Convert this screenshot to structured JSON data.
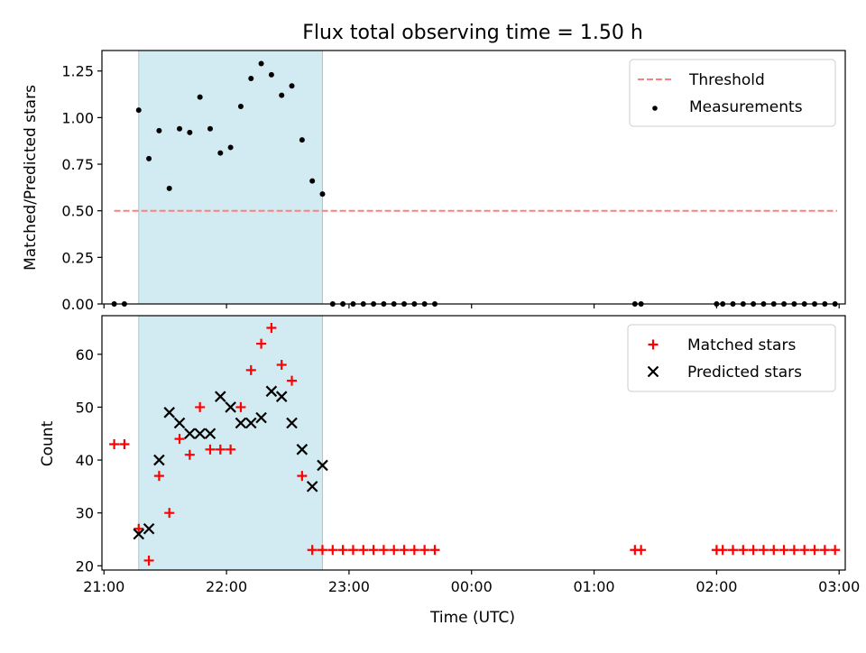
{
  "figure": {
    "title": "Flux total observing time = 1.50 h",
    "xlabel": "Time (UTC)",
    "x_tick_labels": [
      "21:00",
      "22:00",
      "23:00",
      "00:00",
      "01:00",
      "02:00",
      "03:00"
    ]
  },
  "chart_data": [
    {
      "type": "scatter",
      "ylabel": "Matched/Predicted stars",
      "xlim": [
        "20:59",
        "03:03"
      ],
      "ylim": [
        0,
        1.36
      ],
      "y_ticks": [
        "0.00",
        "0.25",
        "0.50",
        "0.75",
        "1.00",
        "1.25"
      ],
      "legend_position": "upper right",
      "highlight_span": {
        "x_start": "21:17",
        "x_end": "22:47",
        "color": "#add8e6"
      },
      "threshold": {
        "name": "Threshold",
        "value": 0.5,
        "x_start": "21:05",
        "x_end": "02:59",
        "color": "#ff7f7f",
        "style": "dashed"
      },
      "series": [
        {
          "name": "Measurements",
          "marker": "dot",
          "color": "#000000",
          "points": [
            [
              "21:05",
              0
            ],
            [
              "21:10",
              0
            ],
            [
              "21:17",
              1.04
            ],
            [
              "21:22",
              0.78
            ],
            [
              "21:27",
              0.93
            ],
            [
              "21:32",
              0.62
            ],
            [
              "21:37",
              0.94
            ],
            [
              "21:42",
              0.92
            ],
            [
              "21:47",
              1.11
            ],
            [
              "21:52",
              0.94
            ],
            [
              "21:57",
              0.81
            ],
            [
              "22:02",
              0.84
            ],
            [
              "22:07",
              1.06
            ],
            [
              "22:12",
              1.21
            ],
            [
              "22:17",
              1.29
            ],
            [
              "22:22",
              1.23
            ],
            [
              "22:27",
              1.12
            ],
            [
              "22:32",
              1.17
            ],
            [
              "22:37",
              0.88
            ],
            [
              "22:42",
              0.66
            ],
            [
              "22:47",
              0.59
            ],
            [
              "22:52",
              0
            ],
            [
              "22:57",
              0
            ],
            [
              "23:02",
              0
            ],
            [
              "23:07",
              0
            ],
            [
              "23:12",
              0
            ],
            [
              "23:17",
              0
            ],
            [
              "23:22",
              0
            ],
            [
              "23:27",
              0
            ],
            [
              "23:32",
              0
            ],
            [
              "23:37",
              0
            ],
            [
              "23:42",
              0
            ],
            [
              "01:20",
              0
            ],
            [
              "01:23",
              0
            ],
            [
              "02:00",
              0
            ],
            [
              "02:03",
              0
            ],
            [
              "02:08",
              0
            ],
            [
              "02:13",
              0
            ],
            [
              "02:18",
              0
            ],
            [
              "02:23",
              0
            ],
            [
              "02:28",
              0
            ],
            [
              "02:33",
              0
            ],
            [
              "02:38",
              0
            ],
            [
              "02:43",
              0
            ],
            [
              "02:48",
              0
            ],
            [
              "02:53",
              0
            ],
            [
              "02:58",
              0
            ]
          ]
        }
      ]
    },
    {
      "type": "scatter",
      "ylabel": "Count",
      "xlim": [
        "20:59",
        "03:03"
      ],
      "ylim": [
        19.2,
        67.3
      ],
      "y_ticks": [
        "20",
        "30",
        "40",
        "50",
        "60"
      ],
      "legend_position": "upper right",
      "highlight_span": {
        "x_start": "21:17",
        "x_end": "22:47",
        "color": "#add8e6"
      },
      "series": [
        {
          "name": "Matched stars",
          "marker": "plus",
          "color": "#ff0000",
          "points": [
            [
              "21:05",
              43
            ],
            [
              "21:10",
              43
            ],
            [
              "21:17",
              27
            ],
            [
              "21:22",
              21
            ],
            [
              "21:27",
              37
            ],
            [
              "21:32",
              30
            ],
            [
              "21:37",
              44
            ],
            [
              "21:42",
              41
            ],
            [
              "21:47",
              50
            ],
            [
              "21:52",
              42
            ],
            [
              "21:57",
              42
            ],
            [
              "22:02",
              42
            ],
            [
              "22:07",
              50
            ],
            [
              "22:12",
              57
            ],
            [
              "22:17",
              62
            ],
            [
              "22:22",
              65
            ],
            [
              "22:27",
              58
            ],
            [
              "22:32",
              55
            ],
            [
              "22:37",
              37
            ],
            [
              "22:42",
              23
            ],
            [
              "22:47",
              23
            ],
            [
              "22:52",
              23
            ],
            [
              "22:57",
              23
            ],
            [
              "23:02",
              23
            ],
            [
              "23:07",
              23
            ],
            [
              "23:12",
              23
            ],
            [
              "23:17",
              23
            ],
            [
              "23:22",
              23
            ],
            [
              "23:27",
              23
            ],
            [
              "23:32",
              23
            ],
            [
              "23:37",
              23
            ],
            [
              "23:42",
              23
            ],
            [
              "01:20",
              23
            ],
            [
              "01:23",
              23
            ],
            [
              "02:00",
              23
            ],
            [
              "02:03",
              23
            ],
            [
              "02:08",
              23
            ],
            [
              "02:13",
              23
            ],
            [
              "02:18",
              23
            ],
            [
              "02:23",
              23
            ],
            [
              "02:28",
              23
            ],
            [
              "02:33",
              23
            ],
            [
              "02:38",
              23
            ],
            [
              "02:43",
              23
            ],
            [
              "02:48",
              23
            ],
            [
              "02:53",
              23
            ],
            [
              "02:58",
              23
            ]
          ]
        },
        {
          "name": "Predicted stars",
          "marker": "x",
          "color": "#000000",
          "points": [
            [
              "21:17",
              26
            ],
            [
              "21:22",
              27
            ],
            [
              "21:27",
              40
            ],
            [
              "21:32",
              49
            ],
            [
              "21:37",
              47
            ],
            [
              "21:42",
              45
            ],
            [
              "21:47",
              45
            ],
            [
              "21:52",
              45
            ],
            [
              "21:57",
              52
            ],
            [
              "22:02",
              50
            ],
            [
              "22:07",
              47
            ],
            [
              "22:12",
              47
            ],
            [
              "22:17",
              48
            ],
            [
              "22:22",
              53
            ],
            [
              "22:27",
              52
            ],
            [
              "22:32",
              47
            ],
            [
              "22:37",
              42
            ],
            [
              "22:42",
              35
            ],
            [
              "22:47",
              39
            ]
          ]
        }
      ]
    }
  ]
}
